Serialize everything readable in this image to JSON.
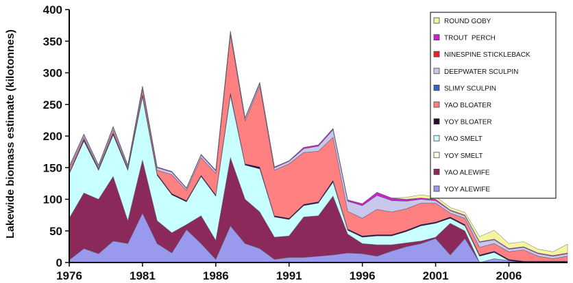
{
  "chart_data": {
    "type": "area",
    "stacked": true,
    "ylabel": "Lakewide biomass estimate (kilotonnes)",
    "xlabel": "",
    "ylim": [
      0,
      400
    ],
    "yticks": [
      0,
      50,
      100,
      150,
      200,
      250,
      300,
      350,
      400
    ],
    "xlim": [
      1976,
      2010
    ],
    "xticks": [
      1976,
      1981,
      1986,
      1991,
      1996,
      2001,
      2006
    ],
    "x": [
      1976,
      1977,
      1978,
      1979,
      1980,
      1981,
      1982,
      1983,
      1984,
      1985,
      1986,
      1987,
      1988,
      1989,
      1990,
      1991,
      1992,
      1993,
      1994,
      1995,
      1996,
      1997,
      1998,
      1999,
      2000,
      2001,
      2002,
      2003,
      2004,
      2005,
      2006,
      2007,
      2008,
      2009,
      2010
    ],
    "legend_position": "top-right",
    "series": [
      {
        "name": "YOY ALEWIFE",
        "color": "#9999ee",
        "values": [
          4,
          22,
          14,
          34,
          30,
          78,
          30,
          15,
          52,
          30,
          5,
          58,
          30,
          22,
          5,
          8,
          8,
          10,
          12,
          15,
          14,
          10,
          18,
          25,
          30,
          38,
          12,
          38,
          0,
          6,
          3,
          0,
          0,
          0,
          0
        ]
      },
      {
        "name": "YAO ALEWIFE",
        "color": "#8b2a5a",
        "values": [
          66,
          88,
          86,
          102,
          36,
          84,
          36,
          32,
          8,
          44,
          30,
          108,
          70,
          58,
          35,
          34,
          64,
          64,
          93,
          30,
          16,
          18,
          10,
          6,
          4,
          2,
          50,
          12,
          0,
          0,
          0,
          0,
          0,
          0,
          0
        ]
      },
      {
        "name": "YOY SMELT",
        "color": "#fdfde0",
        "values": [
          0,
          0,
          0,
          0,
          0,
          0,
          0,
          0,
          0,
          0,
          0,
          0,
          0,
          0,
          0,
          0,
          0,
          0,
          0,
          0,
          0,
          0,
          0,
          0,
          0,
          0,
          0,
          0,
          0,
          0,
          0,
          0,
          0,
          0,
          0
        ]
      },
      {
        "name": "YAO SMELT",
        "color": "#c8ffff",
        "values": [
          70,
          82,
          46,
          66,
          80,
          100,
          72,
          60,
          36,
          62,
          70,
          98,
          54,
          68,
          32,
          26,
          18,
          20,
          22,
          6,
          10,
          14,
          14,
          18,
          24,
          22,
          8,
          8,
          10,
          10,
          0,
          0,
          0,
          0,
          0
        ]
      },
      {
        "name": "YOY BLOATER",
        "color": "#2a0a3a",
        "values": [
          2,
          3,
          2,
          3,
          2,
          4,
          2,
          2,
          2,
          2,
          2,
          4,
          2,
          3,
          2,
          2,
          2,
          2,
          3,
          2,
          2,
          2,
          2,
          2,
          2,
          2,
          2,
          2,
          2,
          2,
          2,
          2,
          2,
          2,
          2
        ]
      },
      {
        "name": "YAO BLOATER",
        "color": "#ff8080",
        "values": [
          6,
          3,
          2,
          5,
          2,
          8,
          6,
          30,
          16,
          28,
          34,
          92,
          68,
          128,
          72,
          86,
          82,
          80,
          68,
          28,
          28,
          40,
          36,
          34,
          34,
          30,
          6,
          10,
          12,
          12,
          12,
          18,
          8,
          4,
          8
        ]
      },
      {
        "name": "SLIMY SCULPIN",
        "color": "#3366cc",
        "values": [
          0,
          0,
          0,
          0,
          0,
          0,
          0,
          0,
          0,
          0,
          0,
          0,
          0,
          0,
          0,
          0,
          0,
          0,
          0,
          0,
          0,
          0,
          0,
          0,
          0,
          0,
          0,
          0,
          0,
          0,
          0,
          0,
          0,
          0,
          0
        ]
      },
      {
        "name": "DEEPWATER SCULPIN",
        "color": "#c8c8ec",
        "values": [
          3,
          4,
          3,
          4,
          3,
          4,
          4,
          4,
          3,
          4,
          4,
          4,
          4,
          4,
          4,
          4,
          6,
          8,
          12,
          16,
          20,
          22,
          18,
          12,
          6,
          4,
          4,
          4,
          8,
          6,
          4,
          4,
          4,
          4,
          4
        ]
      },
      {
        "name": "NINESPINE STICKLEBACK",
        "color": "#ee2222",
        "values": [
          0,
          0,
          0,
          0,
          0,
          0,
          0,
          0,
          0,
          0,
          0,
          0,
          0,
          0,
          0,
          0,
          0,
          0,
          0,
          0,
          0,
          0,
          0,
          0,
          0,
          0,
          0,
          0,
          0,
          0,
          0,
          0,
          0,
          0,
          0
        ]
      },
      {
        "name": "TROUT  PERCH",
        "color": "#cc22cc",
        "values": [
          1,
          1,
          1,
          1,
          1,
          1,
          1,
          1,
          1,
          1,
          1,
          2,
          1,
          2,
          1,
          1,
          2,
          2,
          2,
          2,
          3,
          5,
          4,
          3,
          2,
          2,
          1,
          1,
          1,
          1,
          1,
          1,
          1,
          1,
          1
        ]
      },
      {
        "name": "ROUND GOBY",
        "color": "#f5f5a0",
        "values": [
          0,
          0,
          0,
          0,
          0,
          0,
          0,
          0,
          0,
          0,
          0,
          0,
          0,
          0,
          0,
          0,
          0,
          0,
          0,
          0,
          0,
          0,
          0,
          3,
          5,
          4,
          4,
          4,
          8,
          14,
          8,
          8,
          6,
          6,
          14
        ]
      }
    ]
  }
}
